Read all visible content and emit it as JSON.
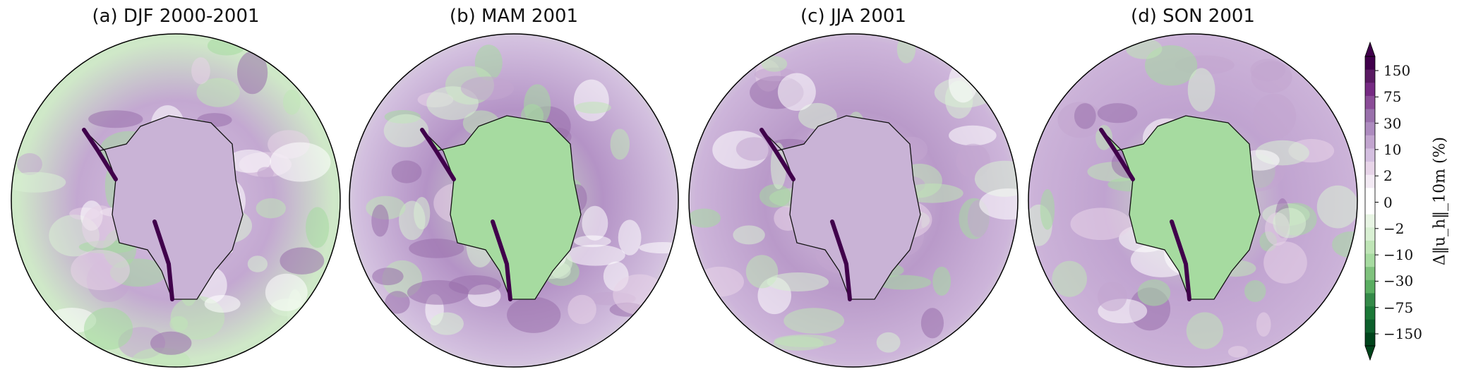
{
  "panels": [
    {
      "title": "(a) DJF 2000-2001"
    },
    {
      "title": "(b) MAM 2001"
    },
    {
      "title": "(c) JJA 2001"
    },
    {
      "title": "(d) SON 2001"
    }
  ],
  "colorbar": {
    "label": "Δ‖u_h‖_10m (%)",
    "ticks": [
      "150",
      "75",
      "30",
      "10",
      "2",
      "0",
      "−2",
      "−10",
      "−30",
      "−75",
      "−150"
    ],
    "colors": [
      "#40004b",
      "#5a1a63",
      "#762a83",
      "#8a4c97",
      "#9970ab",
      "#ad8bbf",
      "#c2a5cf",
      "#d4bfe0",
      "#e7d4e8",
      "#f3eaf4",
      "#ffffff",
      "#ffffff",
      "#e8f5e4",
      "#d9f0d3",
      "#bfe5b6",
      "#a6dba0",
      "#7fc27d",
      "#5aae61",
      "#348a48",
      "#1b7837",
      "#0d5f2c",
      "#00441b"
    ],
    "extend": "both"
  }
}
